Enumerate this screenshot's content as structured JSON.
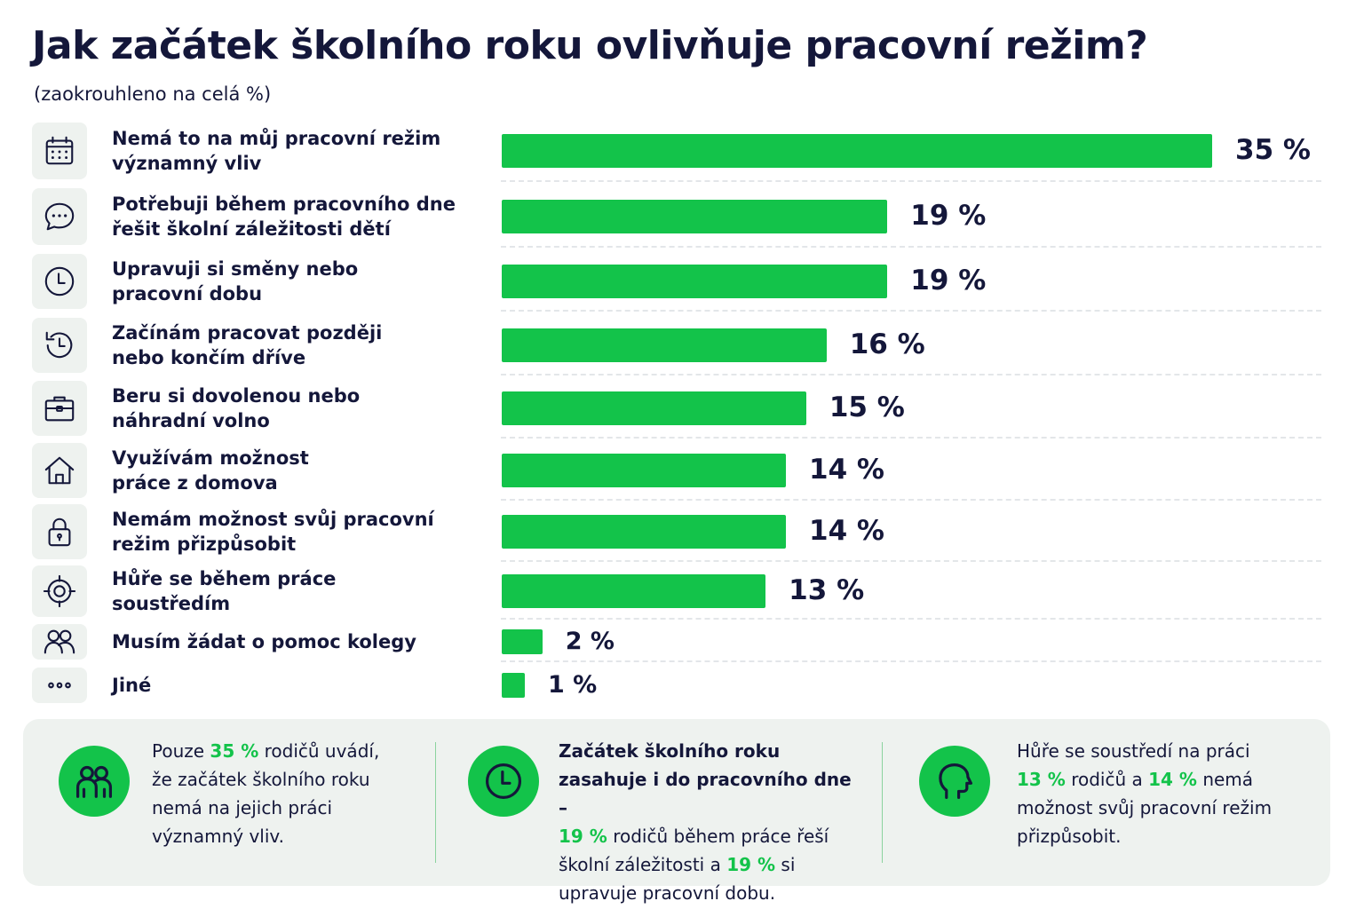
{
  "title": "Jak začátek školního roku ovlivňuje pracovní režim?",
  "subtitle": "(zaokrouhleno na celá %)",
  "chart_data": {
    "type": "bar",
    "orientation": "horizontal",
    "title": "Jak začátek školního roku ovlivňuje pracovní režim?",
    "subtitle": "(zaokrouhleno na celá %)",
    "unit": "%",
    "color": "#13c34a",
    "categories": [
      "Nemá to na můj pracovní režim významný vliv",
      "Potřebuji během pracovního dne řešit školní záležitosti dětí",
      "Upravuji si směny nebo pracovní dobu",
      "Začínám pracovat později nebo končím dříve",
      "Beru si dovolenou nebo náhradní volno",
      "Využívám možnost práce z domova",
      "Nemám možnost svůj pracovní režim přizpůsobit",
      "Hůře se během práce soustředím",
      "Musím žádat o pomoc kolegy",
      "Jiné"
    ],
    "values": [
      35,
      19,
      19,
      16,
      15,
      14,
      14,
      13,
      2,
      1
    ],
    "value_labels": [
      "35 %",
      "19 %",
      "19 %",
      "16 %",
      "15 %",
      "14 %",
      "14 %",
      "13 %",
      "2 %",
      "1 %"
    ],
    "icons": [
      "calendar-icon",
      "chat-bubble-icon",
      "clock-icon",
      "clock-history-icon",
      "briefcase-icon",
      "house-icon",
      "lock-icon",
      "target-icon",
      "people-icon",
      "more-dots-icon"
    ]
  },
  "label_lines": [
    [
      "Nemá to na můj pracovní režim",
      "významný vliv"
    ],
    [
      "Potřebuji během pracovního dne",
      "řešit školní záležitosti dětí"
    ],
    [
      "Upravuji si směny nebo",
      "pracovní dobu"
    ],
    [
      "Začínám pracovat později",
      "nebo končím dříve"
    ],
    [
      "Beru si dovolenou nebo",
      "náhradní volno"
    ],
    [
      "Využívám možnost",
      "práce z domova"
    ],
    [
      "Nemám možnost svůj pracovní",
      "režim přizpůsobit"
    ],
    [
      "Hůře se během práce",
      "soustředím"
    ],
    [
      "Musím žádat o pomoc kolegy"
    ],
    [
      "Jiné"
    ]
  ],
  "summary": [
    {
      "icon": "people-icon",
      "parts": [
        {
          "t": "Pouze "
        },
        {
          "t": "35 %",
          "s": "g"
        },
        {
          "t": " rodičů uvádí,\nže začátek školního roku\nnemá na jejich práci\nvýznamný vliv."
        }
      ]
    },
    {
      "icon": "clock-icon",
      "parts": [
        {
          "t": "Začátek školního roku\nzasahuje i do pracovního dne –",
          "s": "b"
        },
        {
          "t": "\n"
        },
        {
          "t": "19 %",
          "s": "g"
        },
        {
          "t": " rodičů během práce řeší\nškolní záležitosti a "
        },
        {
          "t": "19 %",
          "s": "g"
        },
        {
          "t": " si\nupravuje pracovní dobu."
        }
      ]
    },
    {
      "icon": "head-profile-icon",
      "parts": [
        {
          "t": "Hůře se soustředí na práci\n"
        },
        {
          "t": "13 %",
          "s": "g"
        },
        {
          "t": " rodičů a "
        },
        {
          "t": "14 %",
          "s": "g"
        },
        {
          "t": " nemá\nmožnost svůj pracovní režim\npřizpůsobit."
        }
      ]
    }
  ]
}
